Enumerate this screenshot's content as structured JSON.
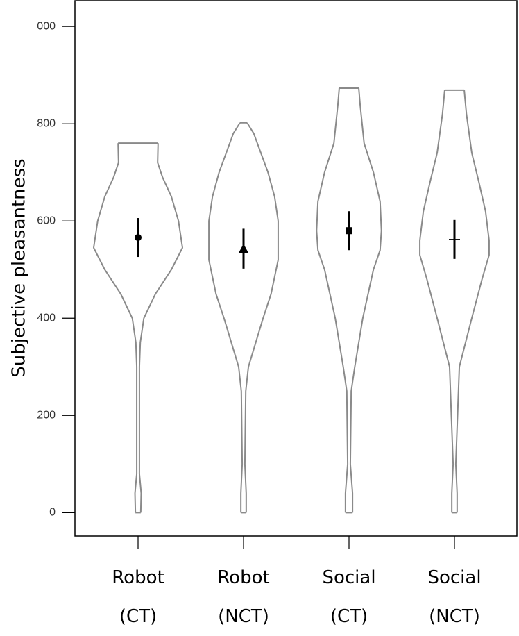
{
  "chart_data": {
    "type": "violin",
    "y_label": "Subjective pleasantness",
    "categories": [
      "Robot (CT)",
      "Robot (NCT)",
      "Social (CT)",
      "Social (NCT)"
    ],
    "ylim": [
      -48,
      1053
    ],
    "yticks": [
      0,
      200,
      400,
      600,
      800,
      {
        "value": 1000,
        "label": "000"
      }
    ],
    "violin_color": "#8a8a8a",
    "marker_color": "#000000",
    "series": [
      {
        "marker": "circle",
        "mean": 566,
        "error": 40,
        "violin_y": [
          760,
          720,
          690,
          650,
          600,
          545,
          500,
          450,
          400,
          350,
          300,
          100,
          80,
          40,
          0
        ],
        "density": [
          0.45,
          0.44,
          0.55,
          0.75,
          0.91,
          1,
          0.75,
          0.39,
          0.13,
          0.05,
          0.03,
          0.03,
          0.03,
          0.07,
          0.06
        ]
      },
      {
        "marker": "triangle",
        "mean": 543,
        "error": 41,
        "violin_y": [
          802,
          780,
          700,
          650,
          600,
          520,
          450,
          400,
          300,
          250,
          100,
          40,
          0
        ],
        "density": [
          0.08,
          0.23,
          0.55,
          0.7,
          0.78,
          0.78,
          0.62,
          0.44,
          0.11,
          0.05,
          0.03,
          0.06,
          0.06
        ]
      },
      {
        "marker": "square",
        "mean": 580,
        "error": 40,
        "violin_y": [
          873,
          840,
          760,
          700,
          640,
          580,
          540,
          500,
          400,
          300,
          250,
          100,
          40,
          0
        ],
        "density": [
          0.22,
          0.25,
          0.34,
          0.55,
          0.7,
          0.73,
          0.7,
          0.55,
          0.31,
          0.13,
          0.05,
          0.03,
          0.08,
          0.08
        ]
      },
      {
        "marker": "plus",
        "mean": 562,
        "error": 40,
        "violin_y": [
          869,
          820,
          740,
          680,
          620,
          560,
          530,
          480,
          400,
          300,
          100,
          40,
          0
        ],
        "density": [
          0.22,
          0.27,
          0.39,
          0.55,
          0.7,
          0.78,
          0.78,
          0.62,
          0.39,
          0.11,
          0.03,
          0.06,
          0.06
        ]
      }
    ]
  }
}
